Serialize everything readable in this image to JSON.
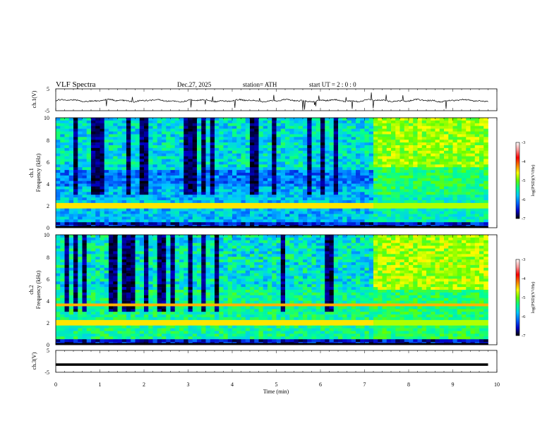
{
  "header": {
    "title": "VLF  Spectra",
    "date": "Dec.27, 2025",
    "station": "station= ATH",
    "start_ut": "start  UT  =   2  : 0   : 0"
  },
  "chart_data": [
    {
      "type": "line",
      "name": "ch1-waveform",
      "ylabel": "ch.1(V)",
      "ylim": [
        -5,
        5
      ],
      "yticks": [
        "5",
        "-5"
      ],
      "xlim": [
        0,
        10
      ],
      "data_end_min": 9.8,
      "description": "noisy waveform around -0.5 V with sporadic spikes"
    },
    {
      "type": "heatmap",
      "name": "ch1-spectrogram",
      "ylabel": "ch.1\nFrequency  (kHz)",
      "ylabel_lines": [
        "ch.1",
        "Frequency  (kHz)"
      ],
      "ylim": [
        0,
        10
      ],
      "yticks": [
        "0",
        "2",
        "4",
        "6",
        "8",
        "10"
      ],
      "xlim": [
        0,
        10
      ],
      "data_end_min": 9.8,
      "change_time_min": 7.2,
      "colorbar": {
        "label": "log(PSD)(V²/Hz)",
        "range": [
          -7,
          -3
        ],
        "ticks": [
          "-3",
          "-4",
          "-5",
          "-6",
          "-7"
        ],
        "colors": [
          "#000000",
          "#0000c8",
          "#0064ff",
          "#00c8ff",
          "#00ff96",
          "#64ff00",
          "#ffff00",
          "#ff8000",
          "#ff0000",
          "#ff9696",
          "#ffffff"
        ]
      }
    },
    {
      "type": "heatmap",
      "name": "ch2-spectrogram",
      "ylabel": "ch.2\nFrequency  (kHz)",
      "ylabel_lines": [
        "ch.2",
        "Frequency  (kHz)"
      ],
      "ylim": [
        0,
        10
      ],
      "yticks": [
        "0",
        "2",
        "4",
        "6",
        "8",
        "10"
      ],
      "xlim": [
        0,
        10
      ],
      "data_end_min": 9.8,
      "change_time_min": 7.2,
      "colorbar": {
        "label": "log(PSD)(V²/Hz)",
        "range": [
          -7,
          -3
        ],
        "ticks": [
          "-3",
          "-4",
          "-5",
          "-6",
          "-7"
        ],
        "colors": [
          "#000000",
          "#0000c8",
          "#0064ff",
          "#00c8ff",
          "#00ff96",
          "#64ff00",
          "#ffff00",
          "#ff8000",
          "#ff0000",
          "#ff9696",
          "#ffffff"
        ]
      }
    },
    {
      "type": "line",
      "name": "ch3-waveform",
      "ylabel": "ch.3(V)",
      "ylim": [
        -5,
        5
      ],
      "yticks": [
        "5",
        "-5"
      ],
      "xlim": [
        0,
        10
      ],
      "data_end_min": 9.8,
      "value": -1.5,
      "description": "flat thick trace at about -1.5 V"
    }
  ],
  "x_axis": {
    "label": "Time  (min)",
    "ticks": [
      "0",
      "1",
      "2",
      "3",
      "4",
      "5",
      "6",
      "7",
      "8",
      "9",
      "10"
    ]
  }
}
